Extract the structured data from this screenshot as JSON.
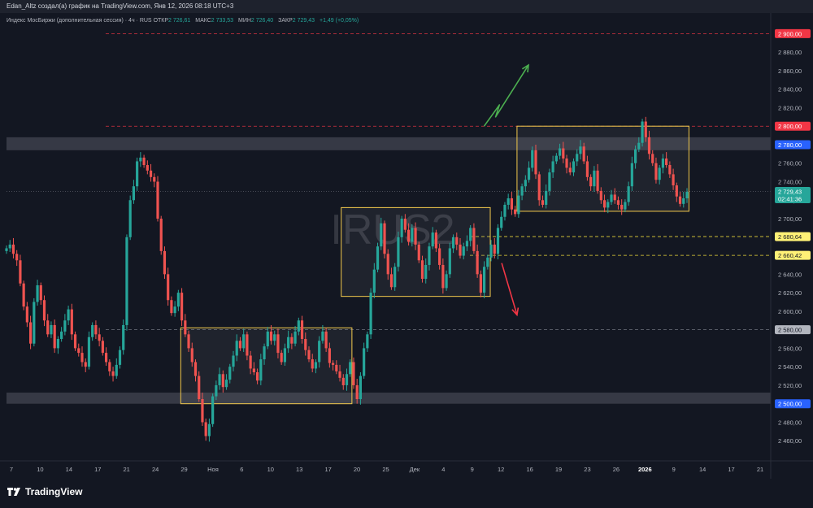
{
  "header": {
    "title": "Edan_Altz создал(а) график на TradingView.com, Янв 12, 2026 08:18 UTC+3"
  },
  "legend": {
    "name": "Индекс МосБиржи (дополнительная сессия) · 4ч · RUS",
    "open_label": "ОТКР",
    "open": "2 726,61",
    "high_label": "МАКС",
    "high": "2 733,53",
    "low_label": "МИН",
    "low": "2 726,40",
    "close_label": "ЗАКР",
    "close": "2 729,43",
    "change": "+1,49 (+0,05%)"
  },
  "watermark": "IRUS2",
  "footer": {
    "brand": "TradingView"
  },
  "colors": {
    "background": "#131722",
    "up": "#26a69a",
    "down": "#ef5350",
    "zone": "#434651",
    "box_border": "#f2c94c",
    "arrow_up": "#4caf50",
    "arrow_down": "#f23645"
  },
  "chart_data": {
    "type": "candlestick",
    "ylim": [
      2440,
      2910
    ],
    "y_ticks": [
      "2 460,00",
      "2 480,00",
      "2 500,00",
      "2 520,00",
      "2 540,00",
      "2 560,00",
      "2 580,00",
      "2 600,00",
      "2 620,00",
      "2 640,00",
      "2 660,00",
      "2 680,00",
      "2 700,00",
      "2 720,00",
      "2 740,00",
      "2 760,00",
      "2 780,00",
      "2 800,00",
      "2 820,00",
      "2 840,00",
      "2 860,00",
      "2 880,00",
      "2 900,00"
    ],
    "x_ticks": [
      "7",
      "10",
      "14",
      "17",
      "21",
      "24",
      "29",
      "Ноя",
      "6",
      "10",
      "13",
      "17",
      "20",
      "25",
      "Дек",
      "4",
      "9",
      "12",
      "16",
      "19",
      "23",
      "26",
      "2026",
      "9",
      "14",
      "17",
      "21"
    ],
    "x_tick_bold": [
      "2026"
    ],
    "price_labels": [
      {
        "value": 2900,
        "text": "2 900,00",
        "bg": "#f23645",
        "fg": "#ffffff"
      },
      {
        "value": 2800,
        "text": "2 800,00",
        "bg": "#f23645",
        "fg": "#ffffff"
      },
      {
        "value": 2780,
        "text": "2 780,00",
        "bg": "#2962ff",
        "fg": "#ffffff"
      },
      {
        "value": 2729.43,
        "text": "2 729,43",
        "text2": "02:41:36",
        "bg": "#26a69a",
        "fg": "#ffffff"
      },
      {
        "value": 2680.64,
        "text": "2 680,64",
        "bg": "#fff176",
        "fg": "#131722"
      },
      {
        "value": 2660.42,
        "text": "2 660,42",
        "bg": "#fff176",
        "fg": "#131722"
      },
      {
        "value": 2580,
        "text": "2 580,00",
        "bg": "#b2b5be",
        "fg": "#131722"
      },
      {
        "value": 2500,
        "text": "2 500,00",
        "bg": "#2962ff",
        "fg": "#ffffff"
      }
    ],
    "horizontal_lines": [
      {
        "value": 2900,
        "color": "#f23645",
        "style": "dashed"
      },
      {
        "value": 2800,
        "color": "#f23645",
        "style": "dashed"
      },
      {
        "value": 2680.64,
        "color": "#ffeb3b",
        "style": "dashed"
      },
      {
        "value": 2660.42,
        "color": "#ffeb3b",
        "style": "dashed"
      },
      {
        "value": 2580,
        "color": "#787b86",
        "style": "dashed"
      },
      {
        "value": 2729.43,
        "color": "#787b86",
        "style": "dotted"
      }
    ],
    "zones": [
      {
        "from": 2774,
        "to": 2788
      },
      {
        "from": 2500,
        "to": 2512
      }
    ],
    "boxes": [
      {
        "x0": 0.228,
        "x1": 0.452,
        "y0": 2500,
        "y1": 2582
      },
      {
        "x0": 0.438,
        "x1": 0.633,
        "y0": 2616,
        "y1": 2712
      },
      {
        "x0": 0.668,
        "x1": 0.893,
        "y0": 2708,
        "y1": 2800
      }
    ],
    "arrows": [
      {
        "direction": "up",
        "points": [
          [
            0.625,
            2800
          ],
          [
            0.645,
            2823
          ],
          [
            0.64,
            2810
          ],
          [
            0.683,
            2866
          ]
        ]
      },
      {
        "direction": "down",
        "points": [
          [
            0.648,
            2652
          ],
          [
            0.668,
            2596
          ]
        ]
      }
    ],
    "closes": [
      2668,
      2672,
      2662,
      2655,
      2630,
      2605,
      2588,
      2565,
      2610,
      2628,
      2612,
      2590,
      2575,
      2585,
      2560,
      2570,
      2578,
      2590,
      2602,
      2575,
      2560,
      2555,
      2545,
      2540,
      2572,
      2585,
      2575,
      2568,
      2555,
      2545,
      2535,
      2530,
      2542,
      2558,
      2585,
      2680,
      2720,
      2735,
      2762,
      2766,
      2758,
      2752,
      2745,
      2740,
      2700,
      2665,
      2640,
      2612,
      2598,
      2605,
      2620,
      2590,
      2575,
      2560,
      2545,
      2530,
      2505,
      2480,
      2465,
      2478,
      2508,
      2520,
      2532,
      2518,
      2526,
      2540,
      2552,
      2568,
      2560,
      2575,
      2552,
      2538,
      2534,
      2525,
      2548,
      2562,
      2578,
      2568,
      2575,
      2555,
      2545,
      2560,
      2572,
      2565,
      2578,
      2590,
      2570,
      2558,
      2548,
      2538,
      2545,
      2568,
      2578,
      2560,
      2544,
      2542,
      2535,
      2528,
      2520,
      2532,
      2545,
      2520,
      2505,
      2530,
      2560,
      2575,
      2620,
      2645,
      2670,
      2695,
      2662,
      2640,
      2626,
      2648,
      2680,
      2700,
      2688,
      2675,
      2690,
      2672,
      2655,
      2635,
      2650,
      2670,
      2685,
      2668,
      2650,
      2625,
      2640,
      2668,
      2680,
      2672,
      2660,
      2670,
      2676,
      2690,
      2665,
      2640,
      2620,
      2648,
      2658,
      2672,
      2662,
      2690,
      2702,
      2715,
      2722,
      2710,
      2705,
      2725,
      2735,
      2742,
      2755,
      2774,
      2748,
      2720,
      2715,
      2730,
      2750,
      2762,
      2768,
      2776,
      2765,
      2755,
      2750,
      2762,
      2770,
      2778,
      2762,
      2745,
      2735,
      2752,
      2730,
      2720,
      2712,
      2718,
      2726,
      2720,
      2715,
      2710,
      2718,
      2735,
      2760,
      2775,
      2782,
      2805,
      2788,
      2770,
      2760,
      2742,
      2755,
      2765,
      2758,
      2748,
      2736,
      2724,
      2716,
      2722,
      2729
    ],
    "series": [
      {
        "name": "Индекс МосБиржи (дополнительная сессия)"
      }
    ]
  }
}
